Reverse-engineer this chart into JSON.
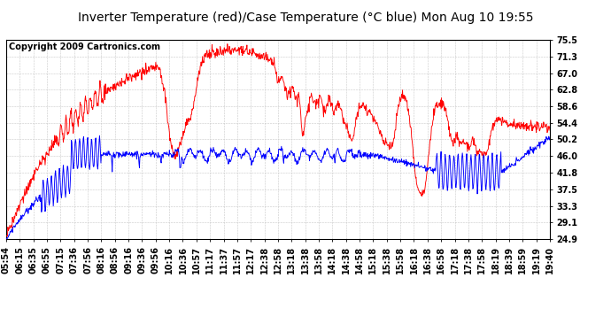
{
  "title": "Inverter Temperature (red)/Case Temperature (°C blue) Mon Aug 10 19:55",
  "copyright": "Copyright 2009 Cartronics.com",
  "ylabel_right_ticks": [
    24.9,
    29.1,
    33.3,
    37.5,
    41.8,
    46.0,
    50.2,
    54.4,
    58.6,
    62.8,
    67.0,
    71.3,
    75.5
  ],
  "ylim": [
    24.9,
    75.5
  ],
  "bg_color": "#ffffff",
  "plot_bg_color": "#ffffff",
  "grid_color": "#c8c8c8",
  "red_color": "#ff0000",
  "blue_color": "#0000ff",
  "title_fontsize": 10,
  "copyright_fontsize": 7,
  "tick_fontsize": 7,
  "n_points": 1200,
  "x_labels": [
    "05:54",
    "06:15",
    "06:35",
    "06:55",
    "07:15",
    "07:36",
    "07:56",
    "08:16",
    "08:56",
    "09:16",
    "09:36",
    "09:56",
    "10:16",
    "10:36",
    "10:57",
    "11:17",
    "11:37",
    "11:57",
    "12:17",
    "12:38",
    "12:58",
    "13:18",
    "13:38",
    "13:58",
    "14:18",
    "14:38",
    "14:58",
    "15:18",
    "15:38",
    "15:58",
    "16:18",
    "16:38",
    "16:58",
    "17:18",
    "17:38",
    "17:58",
    "18:19",
    "18:39",
    "18:59",
    "19:19",
    "19:40"
  ]
}
